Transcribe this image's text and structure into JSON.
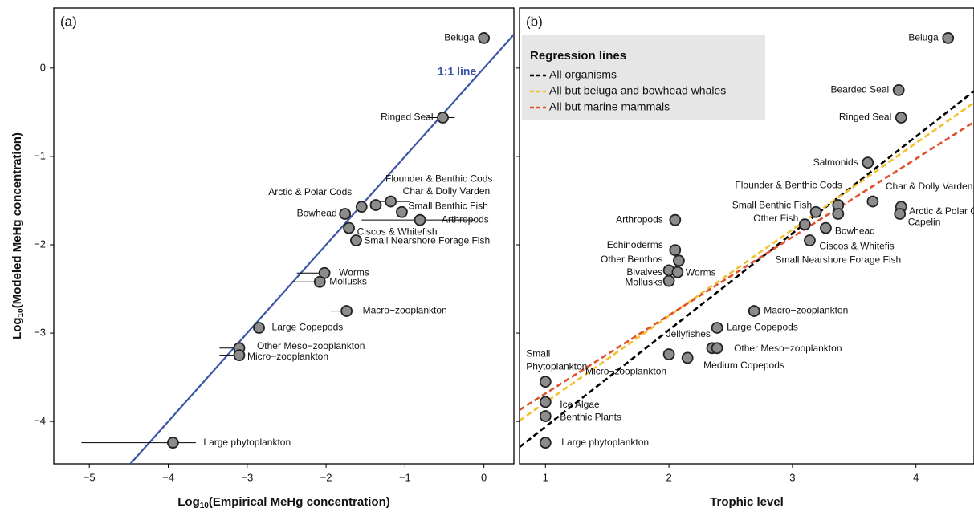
{
  "chart_data": [
    {
      "type": "scatter",
      "panel": "(a)",
      "x_label": [
        "Log",
        "10",
        "(Empirical MeHg concentration)"
      ],
      "y_label": [
        "Log",
        "10",
        "(Modeled MeHg concentration)"
      ],
      "xlim": [
        -5.45,
        0.38
      ],
      "ylim": [
        -4.48,
        0.68
      ],
      "xticks": [
        {
          "value": -5,
          "label": "−5"
        },
        {
          "value": -4,
          "label": "−4"
        },
        {
          "value": -3,
          "label": "−3"
        },
        {
          "value": -2,
          "label": "−2"
        },
        {
          "value": -1,
          "label": "−1"
        },
        0
      ],
      "yticks": [
        {
          "value": -4,
          "label": "−4"
        },
        {
          "value": -3,
          "label": "−3"
        },
        {
          "value": -2,
          "label": "−2"
        },
        {
          "value": -1,
          "label": "−1"
        },
        0
      ],
      "reference_line": {
        "label": "1:1 line",
        "color": "#3a55a4"
      },
      "point_color": "#8c8c8c",
      "labels": [
        "Beluga",
        "Ringed Seal",
        "Arctic & Polar Cods",
        "Flounder & Benthic Cods",
        "Char & Dolly Varden",
        "Small Benthic Fish",
        "Bowhead",
        "Arthropods",
        "Ciscos & Whitefish",
        "Small Nearshore Forage Fish",
        "Worms",
        "Mollusks",
        "Macro−zooplankton",
        "Large Copepods",
        "Other Meso−zooplankton",
        "Micro−zooplankton",
        "Large phytoplankton"
      ],
      "x": [
        0,
        -0.52,
        -1.55,
        -1.37,
        -1.18,
        -1.04,
        -1.76,
        -0.81,
        -1.71,
        -1.62,
        -2.02,
        -2.08,
        -1.74,
        -2.85,
        -3.1,
        -3.1,
        -3.94
      ],
      "y": [
        0.34,
        -0.56,
        -1.57,
        -1.55,
        -1.51,
        -1.63,
        -1.65,
        -1.72,
        -1.81,
        -1.95,
        -2.32,
        -2.42,
        -2.75,
        -2.94,
        -3.17,
        -3.25,
        -4.24
      ],
      "x_err_low": [
        null,
        -0.71,
        null,
        null,
        -1.35,
        null,
        null,
        -1.55,
        null,
        null,
        -2.37,
        -2.43,
        -1.94,
        null,
        -3.35,
        -3.35,
        -5.1
      ],
      "x_err_high": [
        null,
        -0.37,
        null,
        null,
        -0.94,
        null,
        null,
        -0.13,
        null,
        null,
        -2.01,
        -2.06,
        -1.65,
        null,
        -3.03,
        -3.03,
        -3.65
      ]
    },
    {
      "type": "scatter",
      "panel": "(b)",
      "x_label": "Trophic level",
      "xlim": [
        0.79,
        4.47
      ],
      "ylim": [
        -4.48,
        0.68
      ],
      "xticks": [
        1,
        2,
        3,
        4
      ],
      "yticks": [
        -4,
        -3,
        -2,
        -1,
        0
      ],
      "point_color": "#8c8c8c",
      "legend_title": "Regression lines",
      "lines": [
        {
          "name": "All organisms",
          "color": "#000000",
          "x": [
            0.79,
            4.47
          ],
          "y": [
            -4.29,
            -0.26
          ]
        },
        {
          "name": "All but beluga and bowhead whales",
          "color": "#f2c12e",
          "x": [
            0.79,
            4.47
          ],
          "y": [
            -3.99,
            -0.39
          ]
        },
        {
          "name": "All but marine mammals",
          "color": "#e0502a",
          "x": [
            0.79,
            4.47
          ],
          "y": [
            -3.87,
            -0.61
          ]
        }
      ],
      "labels": [
        "Beluga",
        "Bearded Seal",
        "Ringed Seal",
        "Salmonids",
        "Flounder & Benthic Cods",
        "Char & Dolly Varden",
        "Small Benthic Fish",
        "Arctic & Polar Cods",
        "Capelin",
        "Other Fish",
        "Bowhead",
        "Ciscos & Whitefis",
        "Small Nearshore Forage Fish",
        "Arthropods",
        "Echinoderms",
        "Other Benthos",
        "Bivalves",
        "Worms",
        "Mollusks",
        "Macro−zooplankton",
        "Large Copepods",
        "Jellyfishes",
        "Other Meso−zooplankton",
        "Micro−zooplankton",
        "Medium Copepods",
        [
          "Small",
          "Phytoplankton"
        ],
        "Ice Algae",
        "Benthic Plants",
        "Large phytoplankton"
      ],
      "x": [
        4.26,
        3.86,
        3.88,
        3.61,
        3.37,
        3.65,
        3.19,
        3.88,
        3.87,
        3.1,
        3.37,
        3.27,
        3.14,
        2.05,
        2.05,
        2.08,
        2.0,
        2.07,
        2.0,
        2.69,
        2.39,
        2.35,
        2.39,
        2.0,
        2.15,
        1,
        1,
        1,
        1
      ],
      "y": [
        0.34,
        -0.25,
        -0.56,
        -1.07,
        -1.55,
        -1.51,
        -1.63,
        -1.57,
        -1.65,
        -1.77,
        -1.65,
        -1.81,
        -1.95,
        -1.72,
        -2.06,
        -2.18,
        -2.29,
        -2.31,
        -2.41,
        -2.75,
        -2.94,
        -3.17,
        -3.17,
        -3.24,
        -3.28,
        -3.55,
        -3.78,
        -3.94,
        -4.24
      ]
    }
  ]
}
